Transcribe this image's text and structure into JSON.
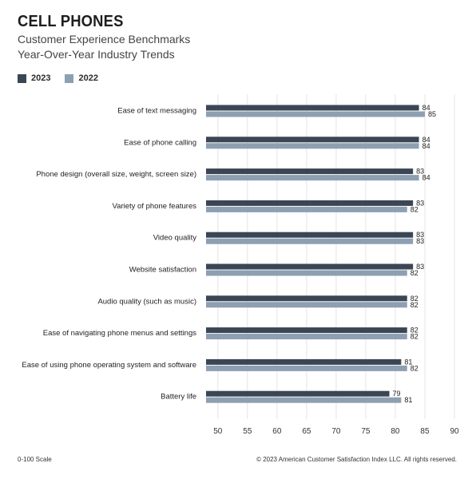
{
  "header": {
    "title": "CELL PHONES",
    "subtitle_line1": "Customer Experience Benchmarks",
    "subtitle_line2": "Year-Over-Year Industry Trends"
  },
  "legend": [
    {
      "label": "2023",
      "color": "#3b4654"
    },
    {
      "label": "2022",
      "color": "#8e9fb2"
    }
  ],
  "footer": {
    "left": "0-100 Scale",
    "right": "© 2023 American Customer Satisfaction Index LLC. All rights reserved."
  },
  "chart_data": {
    "type": "bar",
    "orientation": "horizontal",
    "title": "CELL PHONES",
    "categories": [
      "Ease of text messaging",
      "Ease of phone calling",
      "Phone design (overall size, weight, screen size)",
      "Variety of phone features",
      "Video quality",
      "Website satisfaction",
      "Audio quality (such as music)",
      "Ease of navigating phone menus and settings",
      "Ease of using phone operating system and software",
      "Battery life"
    ],
    "series": [
      {
        "name": "2023",
        "color": "#3b4654",
        "values": [
          84,
          84,
          83,
          83,
          83,
          83,
          82,
          82,
          81,
          79
        ]
      },
      {
        "name": "2022",
        "color": "#8e9fb2",
        "values": [
          85,
          84,
          84,
          82,
          83,
          82,
          82,
          82,
          82,
          81
        ]
      }
    ],
    "xlim": [
      48,
      90
    ],
    "xticks": [
      50,
      55,
      60,
      65,
      70,
      75,
      80,
      85,
      90
    ],
    "grid": true,
    "legend_position": "top-left"
  }
}
